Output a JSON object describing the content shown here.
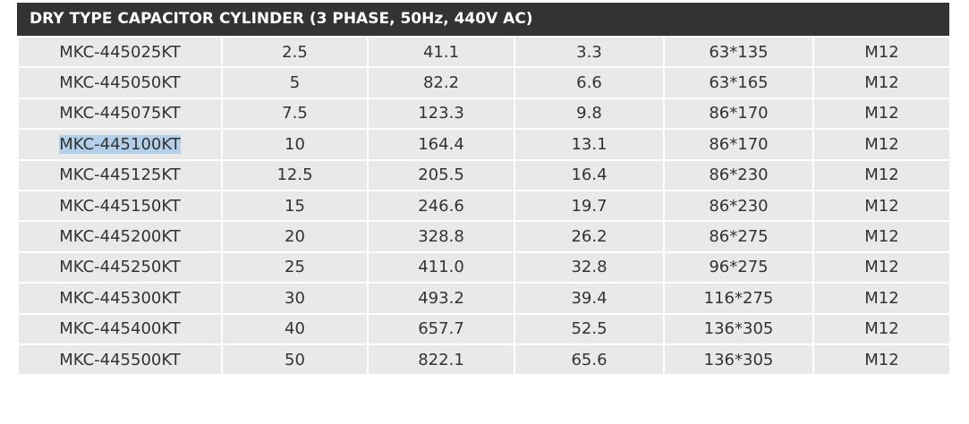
{
  "header": {
    "title": "DRY TYPE CAPACITOR CYLINDER (3 PHASE, 50Hz, 440V AC)"
  },
  "table": {
    "rows": [
      [
        "MKC-445025KT",
        "2.5",
        "41.1",
        "3.3",
        "63*135",
        "M12"
      ],
      [
        "MKC-445050KT",
        "5",
        "82.2",
        "6.6",
        "63*165",
        "M12"
      ],
      [
        "MKC-445075KT",
        "7.5",
        "123.3",
        "9.8",
        "86*170",
        "M12"
      ],
      [
        "MKC-445100KT",
        "10",
        "164.4",
        "13.1",
        "86*170",
        "M12"
      ],
      [
        "MKC-445125KT",
        "12.5",
        "205.5",
        "16.4",
        "86*230",
        "M12"
      ],
      [
        "MKC-445150KT",
        "15",
        "246.6",
        "19.7",
        "86*230",
        "M12"
      ],
      [
        "MKC-445200KT",
        "20",
        "328.8",
        "26.2",
        "86*275",
        "M12"
      ],
      [
        "MKC-445250KT",
        "25",
        "411.0",
        "32.8",
        "96*275",
        "M12"
      ],
      [
        "MKC-445300KT",
        "30",
        "493.2",
        "39.4",
        "116*275",
        "M12"
      ],
      [
        "MKC-445400KT",
        "40",
        "657.7",
        "52.5",
        "136*305",
        "M12"
      ],
      [
        "MKC-445500KT",
        "50",
        "822.1",
        "65.6",
        "136*305",
        "M12"
      ]
    ]
  }
}
